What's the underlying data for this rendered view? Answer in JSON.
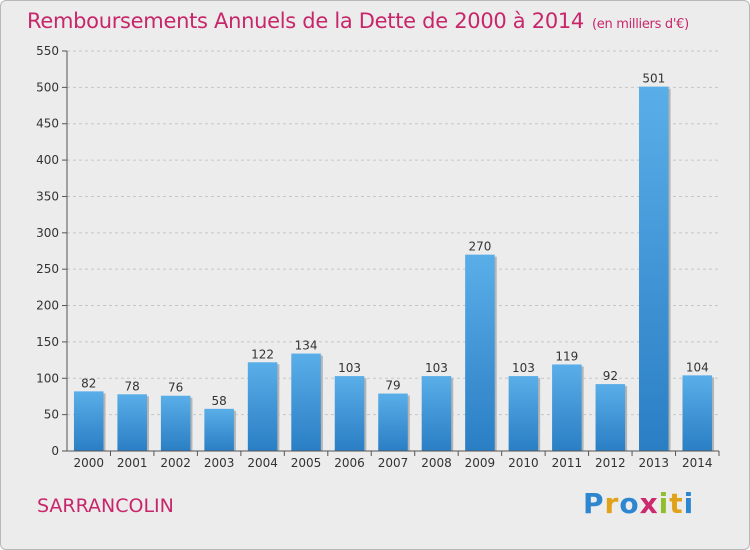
{
  "header": {
    "title": "Remboursements Annuels de la Dette de 2000 à 2014",
    "subtitle": "(en milliers d'€)"
  },
  "footer": {
    "commune": "SARRANCOLIN",
    "logo_letters": [
      "P",
      "r",
      "o",
      "x",
      "i",
      "t",
      "i"
    ],
    "logo_colors": [
      "#2f86d0",
      "#e1a21b",
      "#2f86d0",
      "#cc2a6e",
      "#8fbf2c",
      "#e1a21b",
      "#2f86d0"
    ]
  },
  "colors": {
    "bar_top": "#5aaee8",
    "bar_bottom": "#2a7ec4",
    "title": "#c8266a"
  },
  "chart_data": {
    "type": "bar",
    "title": "Remboursements Annuels de la Dette de 2000 à 2014",
    "subtitle": "(en milliers d'€)",
    "categories": [
      "2000",
      "2001",
      "2002",
      "2003",
      "2004",
      "2005",
      "2006",
      "2007",
      "2008",
      "2009",
      "2010",
      "2011",
      "2012",
      "2013",
      "2014"
    ],
    "values": [
      82,
      78,
      76,
      58,
      122,
      134,
      103,
      79,
      103,
      270,
      103,
      119,
      92,
      501,
      104
    ],
    "ylim": [
      0,
      550
    ],
    "yticks": [
      0,
      50,
      100,
      150,
      200,
      250,
      300,
      350,
      400,
      450,
      500,
      550
    ],
    "grid": true,
    "data_labels": true
  }
}
